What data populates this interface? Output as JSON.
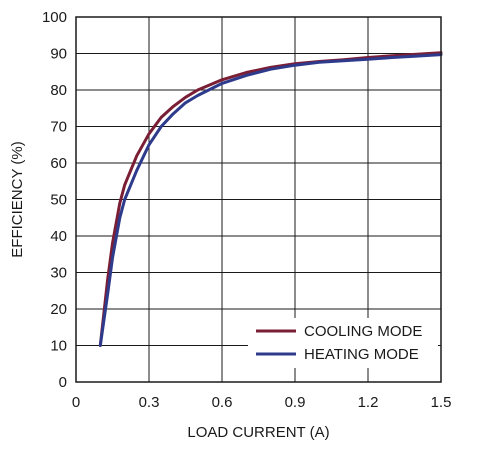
{
  "chart_data": {
    "type": "line",
    "xlabel": "LOAD CURRENT (A)",
    "ylabel": "EFFICIENCY (%)",
    "xlim": [
      0,
      1.5
    ],
    "ylim": [
      0,
      100
    ],
    "x_ticks": [
      "0",
      "0.3",
      "0.6",
      "0.9",
      "1.2",
      "1.5"
    ],
    "y_ticks": [
      "0",
      "10",
      "20",
      "30",
      "40",
      "50",
      "60",
      "70",
      "80",
      "90",
      "100"
    ],
    "x_tick_values": [
      0,
      0.3,
      0.6,
      0.9,
      1.2,
      1.5
    ],
    "y_tick_values": [
      0,
      10,
      20,
      30,
      40,
      50,
      60,
      70,
      80,
      90,
      100
    ],
    "grid": true,
    "legend_position": "bottom-right",
    "series": [
      {
        "name": "COOLING MODE",
        "color": "#7a1e35",
        "x": [
          0.1,
          0.13,
          0.15,
          0.18,
          0.2,
          0.25,
          0.3,
          0.35,
          0.4,
          0.45,
          0.5,
          0.6,
          0.7,
          0.8,
          0.9,
          1.0,
          1.1,
          1.2,
          1.3,
          1.4,
          1.5
        ],
        "y": [
          10,
          28,
          38,
          49,
          54,
          62,
          68,
          72.5,
          75.5,
          78,
          80,
          82.8,
          84.8,
          86.2,
          87.2,
          87.8,
          88.3,
          88.9,
          89.4,
          89.8,
          90.2
        ]
      },
      {
        "name": "HEATING MODE",
        "color": "#2e3b8c",
        "x": [
          0.1,
          0.13,
          0.15,
          0.18,
          0.2,
          0.25,
          0.3,
          0.35,
          0.4,
          0.45,
          0.5,
          0.6,
          0.7,
          0.8,
          0.9,
          1.0,
          1.1,
          1.2,
          1.3,
          1.4,
          1.5
        ],
        "y": [
          10,
          24,
          34,
          45,
          50,
          58,
          65,
          70,
          73.5,
          76.5,
          78.5,
          81.8,
          84,
          85.7,
          86.8,
          87.6,
          88,
          88.4,
          88.9,
          89.3,
          89.7
        ]
      }
    ]
  }
}
